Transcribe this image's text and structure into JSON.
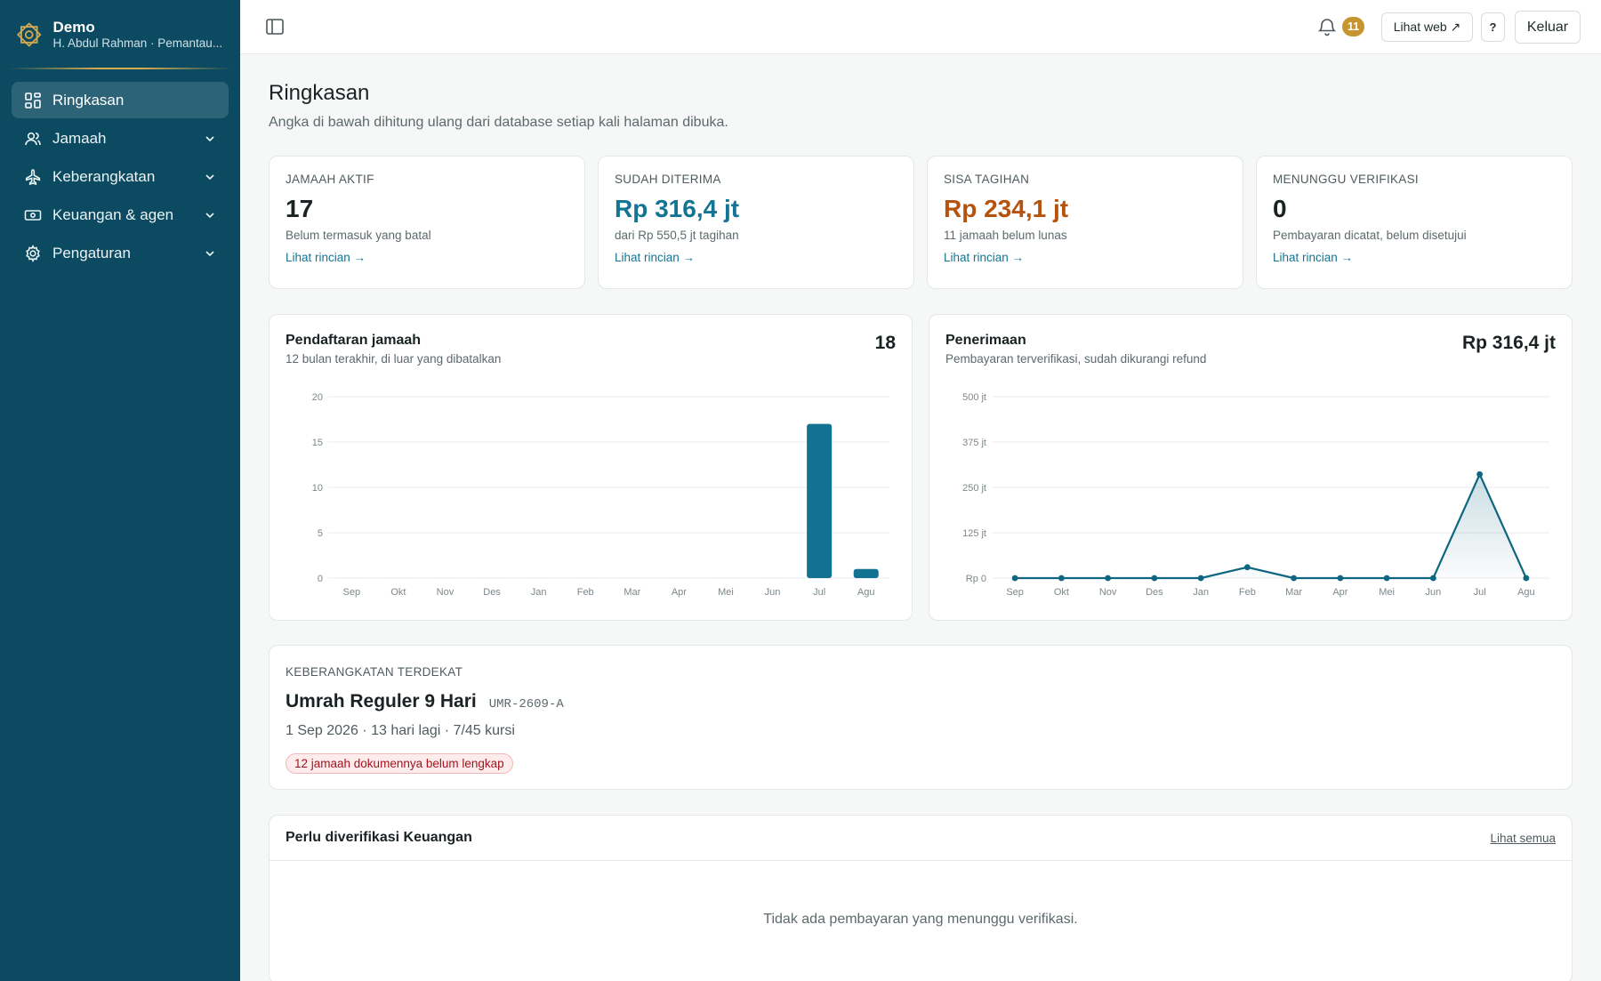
{
  "brand": {
    "title": "Demo",
    "subtitle": "H. Abdul Rahman · Pemantau..."
  },
  "sidebar": {
    "items": [
      {
        "label": "Ringkasan",
        "icon": "grid-icon",
        "active": true
      },
      {
        "label": "Jamaah",
        "icon": "users-icon"
      },
      {
        "label": "Keberangkatan",
        "icon": "plane-icon"
      },
      {
        "label": "Keuangan & agen",
        "icon": "banknote-icon"
      },
      {
        "label": "Pengaturan",
        "icon": "gear-icon"
      }
    ]
  },
  "topbar": {
    "notification_count": "11",
    "view_web_label": "Lihat web ↗",
    "help_label": "?",
    "logout_label": "Keluar"
  },
  "page": {
    "title": "Ringkasan",
    "description": "Angka di bawah dihitung ulang dari database setiap kali halaman dibuka."
  },
  "stats": [
    {
      "label": "JAMAAH AKTIF",
      "value": "17",
      "note": "Belum termasuk yang batal",
      "link": "Lihat rincian →"
    },
    {
      "label": "SUDAH DITERIMA",
      "value": "Rp 316,4 jt",
      "note": "dari Rp 550,5 jt tagihan",
      "link": "Lihat rincian →"
    },
    {
      "label": "SISA TAGIHAN",
      "value": "Rp 234,1 jt",
      "note": "11 jamaah belum lunas",
      "link": "Lihat rincian →"
    },
    {
      "label": "MENUNGGU VERIFIKASI",
      "value": "0",
      "note": "Pembayaran dicatat, belum disetujui",
      "link": "Lihat rincian →"
    }
  ],
  "chart_data": [
    {
      "type": "bar",
      "title": "Pendaftaran jamaah",
      "subtitle": "12 bulan terakhir, di luar yang dibatalkan",
      "total": "18",
      "categories": [
        "Sep",
        "Okt",
        "Nov",
        "Des",
        "Jan",
        "Feb",
        "Mar",
        "Apr",
        "Mei",
        "Jun",
        "Jul",
        "Agu"
      ],
      "values": [
        0,
        0,
        0,
        0,
        0,
        0,
        0,
        0,
        0,
        0,
        17,
        1
      ],
      "yticks": [
        "0",
        "5",
        "10",
        "15",
        "20"
      ],
      "ylim": [
        0,
        20
      ],
      "color": "#117391"
    },
    {
      "type": "area",
      "title": "Penerimaan",
      "subtitle": "Pembayaran terverifikasi, sudah dikurangi refund",
      "total": "Rp 316,4 jt",
      "categories": [
        "Sep",
        "Okt",
        "Nov",
        "Des",
        "Jan",
        "Feb",
        "Mar",
        "Apr",
        "Mei",
        "Jun",
        "Jul",
        "Agu"
      ],
      "values": [
        0,
        0,
        0,
        0,
        0,
        30,
        0,
        0,
        0,
        0,
        286,
        0
      ],
      "yticks": [
        "Rp 0",
        "125 jt",
        "250 jt",
        "375 jt",
        "500 jt"
      ],
      "ylim": [
        0,
        500
      ],
      "color": "#0f6680"
    }
  ],
  "departure": {
    "label": "KEBERANGKATAN TERDEKAT",
    "title": "Umrah Reguler 9 Hari",
    "code": "UMR-2609-A",
    "meta": "1 Sep 2026 · 13 hari lagi · 7/45 kursi",
    "warning": "12 jamaah dokumennya belum lengkap"
  },
  "verify": {
    "title": "Perlu diverifikasi Keuangan",
    "see_all": "Lihat semua",
    "empty": "Tidak ada pembayaran yang menunggu verifikasi."
  }
}
